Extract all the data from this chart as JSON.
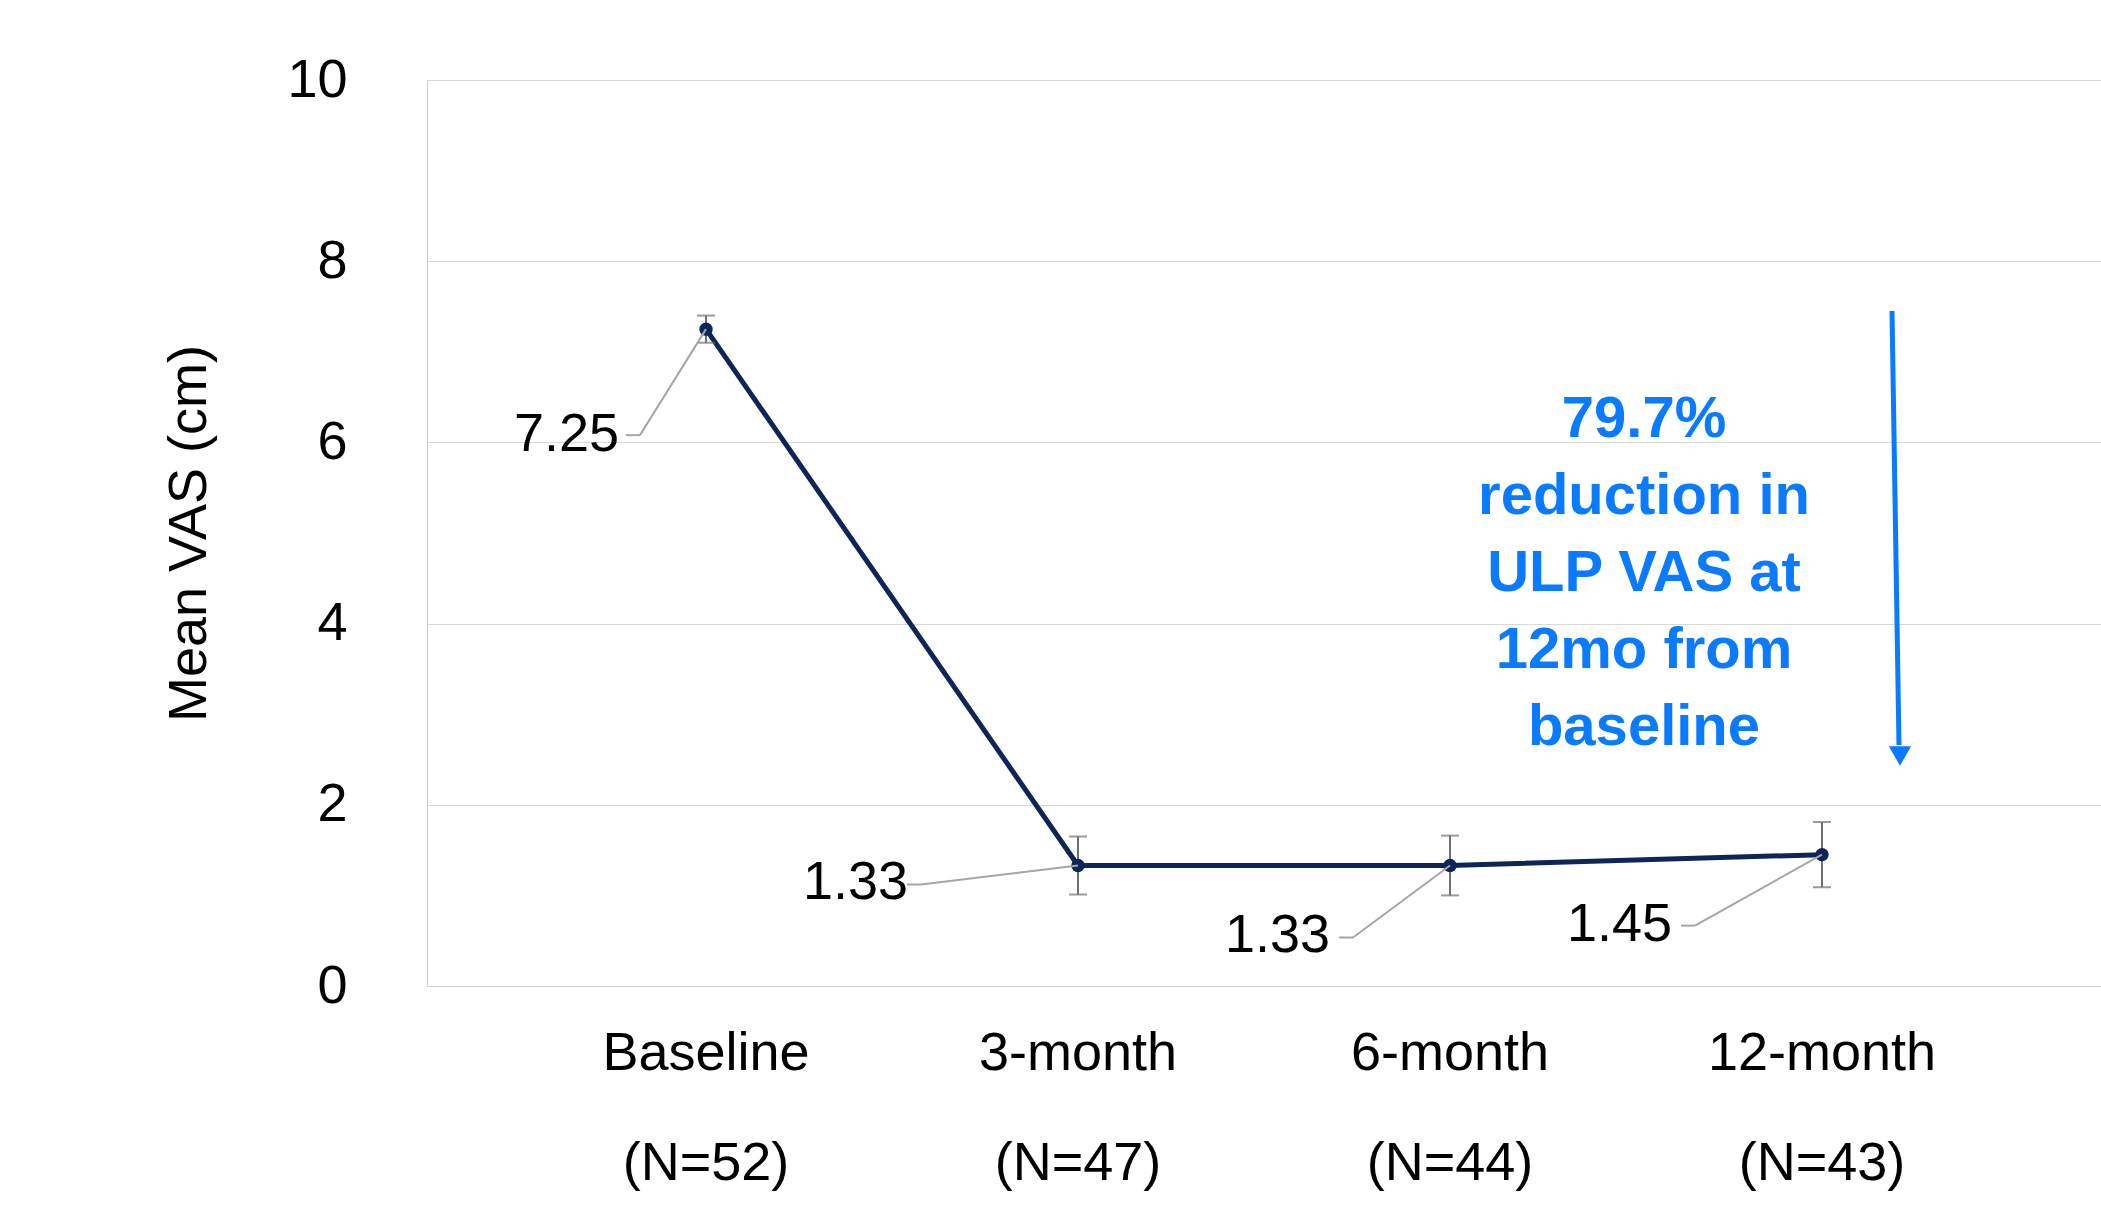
{
  "chart_data": {
    "type": "line",
    "ylabel": "Mean VAS (cm)",
    "categories": [
      "Baseline\n(N=52)",
      "3-month\n(N=47)",
      "6-month\n(N=44)",
      "12-month\n(N=43)"
    ],
    "series": [
      {
        "color": "#0d2657",
        "values": [
          7.25,
          1.33,
          1.33,
          1.45
        ],
        "errors": [
          0.15,
          0.32,
          0.33,
          0.36
        ]
      }
    ],
    "ylim": [
      0,
      10
    ],
    "yticks": [
      0,
      2,
      4,
      6,
      8,
      10
    ],
    "grid": "y",
    "marker": "circle",
    "line_style": "solid",
    "data_labels": true,
    "annotations": [
      "79.7%\nreduction in\nULP VAS at\n12mo from\nbaseline"
    ]
  }
}
